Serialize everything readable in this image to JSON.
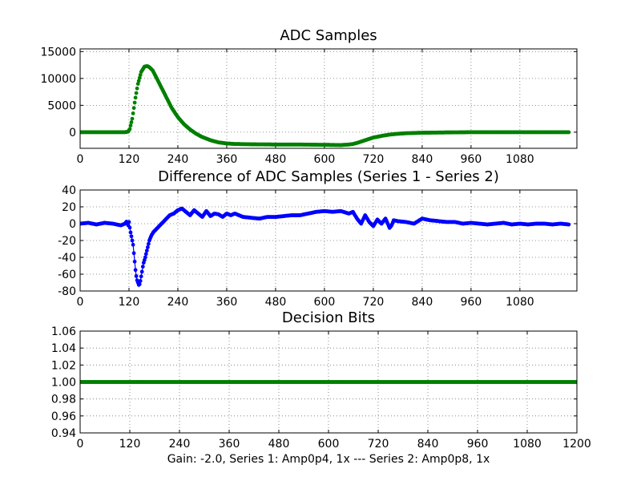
{
  "figure": {
    "footer": "Gain: -2.0, Series 1: Amp0p4, 1x --- Series 2: Amp0p8, 1x"
  },
  "colors": {
    "green": "#007f00",
    "blue": "#0000ff"
  },
  "chart_data": [
    {
      "type": "scatter",
      "title": "ADC Samples",
      "xlabel": "",
      "ylabel": "",
      "xlim": [
        0,
        1220
      ],
      "ylim": [
        -3000,
        15500
      ],
      "grid": true,
      "xticks": [
        0,
        120,
        240,
        360,
        480,
        600,
        720,
        840,
        960,
        1080
      ],
      "yticks": [
        0,
        5000,
        10000,
        15000
      ],
      "series": [
        {
          "name": "ADC samples",
          "color": "green",
          "marker": "dot",
          "x": [
            0,
            60,
            110,
            118,
            122,
            128,
            135,
            142,
            150,
            158,
            165,
            170,
            178,
            185,
            195,
            205,
            215,
            225,
            240,
            255,
            270,
            285,
            300,
            320,
            340,
            360,
            380,
            420,
            480,
            540,
            600,
            640,
            660,
            670,
            680,
            700,
            720,
            740,
            760,
            780,
            800,
            820,
            840,
            900,
            960,
            1020,
            1080,
            1140,
            1200
          ],
          "y": [
            0,
            0,
            0,
            100,
            600,
            2500,
            6000,
            9000,
            11200,
            12200,
            12300,
            12100,
            11500,
            10500,
            9000,
            7500,
            6000,
            4500,
            2800,
            1500,
            500,
            -300,
            -900,
            -1500,
            -1900,
            -2100,
            -2200,
            -2250,
            -2300,
            -2300,
            -2350,
            -2400,
            -2300,
            -2200,
            -2000,
            -1500,
            -1000,
            -700,
            -450,
            -300,
            -200,
            -150,
            -100,
            -50,
            0,
            0,
            0,
            0,
            0
          ]
        }
      ]
    },
    {
      "type": "line",
      "title": "Difference of ADC Samples (Series 1 - Series 2)",
      "xlabel": "",
      "ylabel": "",
      "xlim": [
        0,
        1220
      ],
      "ylim": [
        -80,
        40
      ],
      "grid": true,
      "xticks": [
        0,
        120,
        240,
        360,
        480,
        600,
        720,
        840,
        960,
        1080
      ],
      "yticks": [
        -80,
        -60,
        -40,
        -20,
        0,
        20,
        40
      ],
      "series": [
        {
          "name": "Series 1 - Series 2",
          "color": "blue",
          "marker": "dot",
          "x": [
            0,
            20,
            40,
            60,
            80,
            100,
            110,
            115,
            118,
            120,
            123,
            126,
            130,
            133,
            136,
            139,
            142,
            145,
            148,
            151,
            155,
            160,
            165,
            170,
            175,
            180,
            190,
            200,
            210,
            220,
            230,
            240,
            250,
            260,
            270,
            280,
            290,
            300,
            310,
            320,
            330,
            340,
            350,
            360,
            370,
            380,
            400,
            420,
            440,
            460,
            480,
            500,
            520,
            540,
            560,
            580,
            600,
            620,
            640,
            660,
            670,
            680,
            690,
            700,
            710,
            720,
            730,
            740,
            750,
            760,
            765,
            770,
            780,
            800,
            820,
            840,
            860,
            880,
            900,
            920,
            940,
            960,
            980,
            1000,
            1020,
            1040,
            1060,
            1080,
            1100,
            1120,
            1140,
            1160,
            1180,
            1200
          ],
          "y": [
            0,
            1,
            -1,
            1,
            0,
            -2,
            0,
            3,
            -2,
            2,
            -8,
            -15,
            -25,
            -40,
            -55,
            -66,
            -70,
            -74,
            -68,
            -60,
            -48,
            -40,
            -30,
            -20,
            -14,
            -10,
            -5,
            0,
            5,
            10,
            12,
            16,
            18,
            14,
            10,
            16,
            12,
            8,
            15,
            9,
            12,
            11,
            8,
            12,
            10,
            12,
            8,
            7,
            6,
            8,
            8,
            9,
            10,
            10,
            12,
            14,
            15,
            14,
            15,
            12,
            14,
            6,
            0,
            10,
            2,
            -3,
            5,
            0,
            6,
            -5,
            -2,
            4,
            3,
            2,
            0,
            6,
            4,
            3,
            2,
            2,
            0,
            1,
            0,
            -1,
            0,
            1,
            -1,
            0,
            -1,
            0,
            0,
            -1,
            0,
            -1
          ]
        }
      ]
    },
    {
      "type": "scatter",
      "title": "Decision Bits",
      "xlabel": "",
      "ylabel": "",
      "xlim": [
        0,
        1200
      ],
      "ylim": [
        0.94,
        1.06
      ],
      "grid": true,
      "xticks": [
        0,
        120,
        240,
        360,
        480,
        600,
        720,
        840,
        960,
        1080,
        1200
      ],
      "yticks": [
        0.94,
        0.96,
        0.98,
        1.0,
        1.02,
        1.04,
        1.06
      ],
      "ytick_labels": [
        "0.94",
        "0.96",
        "0.98",
        "1.00",
        "1.02",
        "1.04",
        "1.06"
      ],
      "series": [
        {
          "name": "Decision bits",
          "color": "green",
          "marker": "dot",
          "x": [
            0,
            1200
          ],
          "y": [
            1.0,
            1.0
          ]
        }
      ]
    }
  ]
}
